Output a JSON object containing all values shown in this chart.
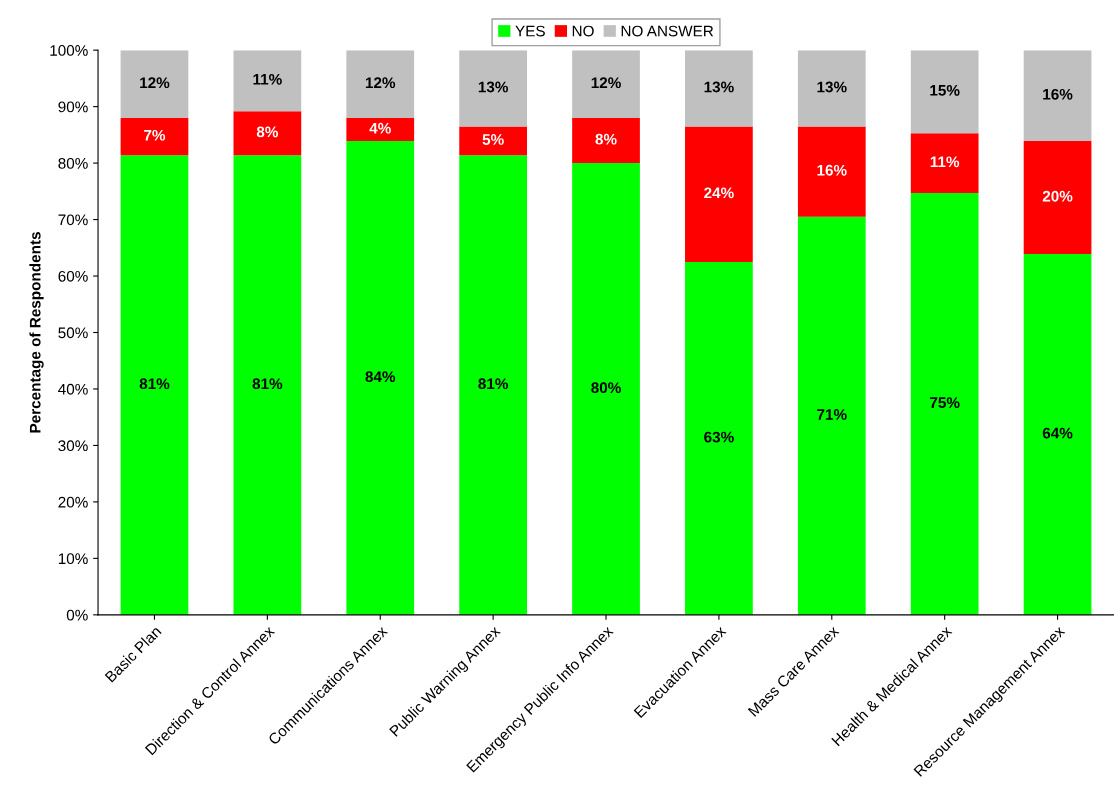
{
  "chart_data": {
    "type": "bar",
    "stacked": true,
    "ylabel": "Percentage of Respondents",
    "categories": [
      "Basic Plan",
      "Direction & Control Annex",
      "Communications Annex",
      "Public Warning Annex",
      "Emergency Public Info Annex",
      "Evacuation Annex",
      "Mass Care Annex",
      "Health & Medical Annex",
      "Resource Management Annex"
    ],
    "series": [
      {
        "name": "YES",
        "color": "#00ff00",
        "values": [
          81.4,
          81.4,
          83.9,
          81.4,
          80.0,
          62.5,
          70.5,
          74.7,
          63.9
        ],
        "value_labels": [
          "81%",
          "81%",
          "84%",
          "81%",
          "80%",
          "63%",
          "71%",
          "75%",
          "64%"
        ]
      },
      {
        "name": "NO",
        "color": "#ff0000",
        "values": [
          6.6,
          7.8,
          4.1,
          5.1,
          8.0,
          24.0,
          16.0,
          10.6,
          20.0
        ],
        "value_labels": [
          "7%",
          "8%",
          "4%",
          "5%",
          "8%",
          "24%",
          "16%",
          "11%",
          "20%"
        ]
      },
      {
        "name": "NO ANSWER",
        "color": "#c0c0c0",
        "values": [
          12.0,
          10.8,
          12.0,
          13.5,
          12.0,
          13.5,
          13.5,
          14.7,
          16.1
        ],
        "value_labels": [
          "12%",
          "11%",
          "12%",
          "13%",
          "12%",
          "13%",
          "13%",
          "15%",
          "16%"
        ]
      }
    ],
    "ylim": [
      0,
      100
    ],
    "yticks": [
      {
        "value": 0,
        "label": "0%"
      },
      {
        "value": 10,
        "label": "10%"
      },
      {
        "value": 20,
        "label": "20%"
      },
      {
        "value": 30,
        "label": "30%"
      },
      {
        "value": 40,
        "label": "40%"
      },
      {
        "value": 50,
        "label": "50%"
      },
      {
        "value": 60,
        "label": "60%"
      },
      {
        "value": 70,
        "label": "70%"
      },
      {
        "value": 80,
        "label": "80%"
      },
      {
        "value": 90,
        "label": "90%"
      },
      {
        "value": 100,
        "label": "100%"
      }
    ],
    "grid": false,
    "legend": "top"
  }
}
